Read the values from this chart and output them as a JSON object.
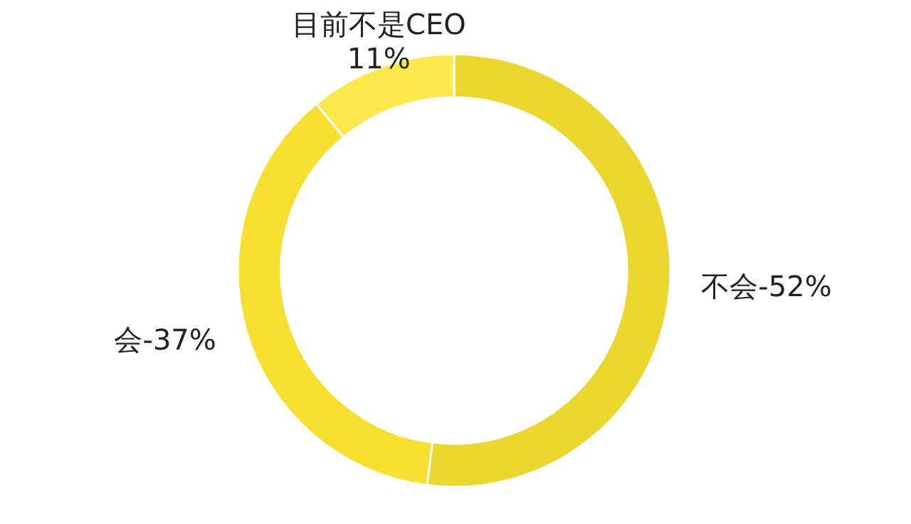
{
  "chart_data": {
    "type": "donut",
    "categories": [
      "不会",
      "会",
      "目前不是CEO"
    ],
    "values": [
      52,
      37,
      11
    ],
    "value_labels": [
      "52%",
      "37%",
      "11%"
    ],
    "colors": [
      "#ebd62d",
      "#f6df2e",
      "#fbe84c"
    ]
  }
}
